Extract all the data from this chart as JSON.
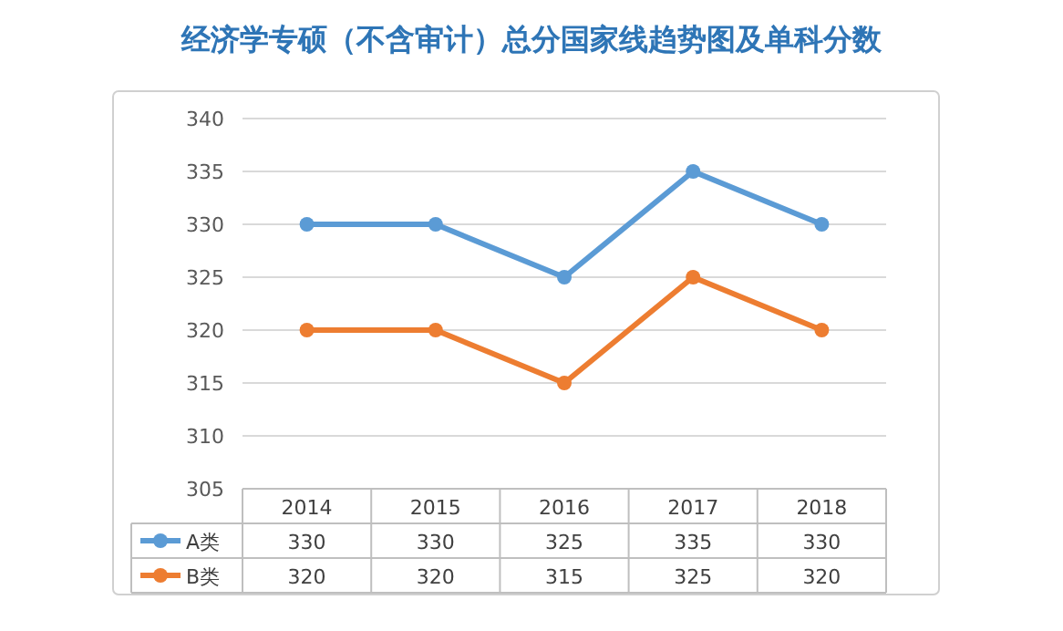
{
  "chart_data": {
    "type": "line",
    "title": "经济学专硕（不含审计）总分国家线趋势图及单科分数",
    "categories": [
      "2014",
      "2015",
      "2016",
      "2017",
      "2018"
    ],
    "series": [
      {
        "name": "A类",
        "color": "#5b9bd5",
        "values": [
          330,
          330,
          325,
          335,
          330
        ]
      },
      {
        "name": "B类",
        "color": "#ed7d31",
        "values": [
          320,
          320,
          315,
          325,
          320
        ]
      }
    ],
    "ylim": [
      305,
      340
    ],
    "yticks": [
      305,
      310,
      315,
      320,
      325,
      330,
      335,
      340
    ],
    "grid": "y",
    "legend": "bottom",
    "marker": "circle",
    "line_style": "solid",
    "data_labels": true
  }
}
